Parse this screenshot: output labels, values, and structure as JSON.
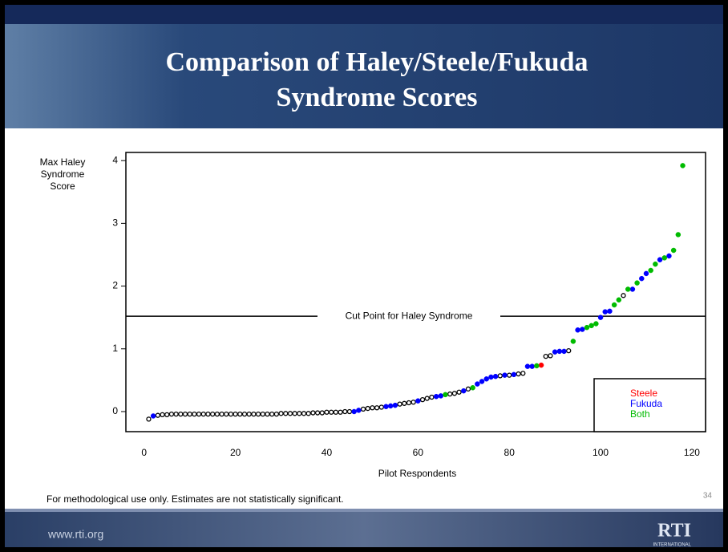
{
  "slide": {
    "title": [
      "Comparison of Haley/Steele/Fukuda",
      "Syndrome Scores"
    ],
    "footnote": "For methodological use only. Estimates are not statistically significant.",
    "page_number": "34",
    "url": "www.rti.org",
    "logo": "RTI",
    "logo_sub": "INTERNATIONAL"
  },
  "chart_data": {
    "type": "scatter",
    "xlabel": "Pilot Respondents",
    "ylabel": [
      "Max Haley",
      "Syndrome",
      "Score"
    ],
    "xlim": [
      -4,
      123
    ],
    "ylim": [
      -0.32,
      4.13
    ],
    "xticks": [
      0,
      20,
      40,
      60,
      80,
      100,
      120
    ],
    "yticks": [
      0,
      1,
      2,
      3,
      4
    ],
    "cut_point": 1.52,
    "cut_label": "Cut Point for Haley Syndrome",
    "legend": "lower right",
    "series": [
      {
        "color": "#000000",
        "hollow": true,
        "x": [
          1,
          3,
          4,
          5,
          6,
          7,
          8,
          9,
          10,
          11,
          12,
          13,
          14,
          15,
          16,
          17,
          18,
          19,
          20,
          21,
          22,
          23,
          24,
          25,
          26,
          27,
          28,
          29,
          30,
          31,
          32,
          33,
          34,
          35,
          36,
          37,
          38,
          39,
          40,
          41,
          42,
          43,
          44,
          45,
          48,
          49,
          50,
          51,
          52,
          56,
          57,
          58,
          59,
          61,
          62,
          63,
          67,
          68,
          69,
          71,
          78,
          80,
          82,
          83,
          88,
          89,
          93,
          105
        ],
        "y": [
          -0.12,
          -0.06,
          -0.05,
          -0.05,
          -0.04,
          -0.04,
          -0.04,
          -0.04,
          -0.04,
          -0.04,
          -0.04,
          -0.04,
          -0.04,
          -0.04,
          -0.04,
          -0.04,
          -0.04,
          -0.04,
          -0.04,
          -0.04,
          -0.04,
          -0.04,
          -0.04,
          -0.04,
          -0.04,
          -0.04,
          -0.04,
          -0.04,
          -0.03,
          -0.03,
          -0.03,
          -0.03,
          -0.03,
          -0.03,
          -0.03,
          -0.02,
          -0.02,
          -0.02,
          -0.01,
          -0.01,
          -0.01,
          -0.01,
          0.0,
          0.0,
          0.04,
          0.05,
          0.06,
          0.06,
          0.07,
          0.12,
          0.13,
          0.14,
          0.15,
          0.19,
          0.21,
          0.23,
          0.28,
          0.29,
          0.31,
          0.36,
          0.57,
          0.58,
          0.6,
          0.61,
          0.88,
          0.89,
          0.97,
          1.85
        ]
      },
      {
        "name": "Steele",
        "color": "#ff0000",
        "x": [
          87
        ],
        "y": [
          0.74
        ]
      },
      {
        "name": "Fukuda",
        "color": "#0000ff",
        "x": [
          2,
          46,
          47,
          53,
          54,
          55,
          60,
          64,
          65,
          70,
          73,
          74,
          75,
          76,
          77,
          79,
          81,
          84,
          85,
          90,
          91,
          92,
          95,
          96,
          100,
          101,
          102,
          107,
          109,
          110,
          113,
          115
        ],
        "y": [
          -0.07,
          0.0,
          0.02,
          0.08,
          0.09,
          0.1,
          0.17,
          0.24,
          0.25,
          0.33,
          0.44,
          0.48,
          0.52,
          0.55,
          0.56,
          0.58,
          0.59,
          0.72,
          0.72,
          0.95,
          0.96,
          0.96,
          1.3,
          1.31,
          1.5,
          1.59,
          1.6,
          1.95,
          2.12,
          2.2,
          2.42,
          2.48
        ]
      },
      {
        "name": "Both",
        "color": "#00bb00",
        "x": [
          66,
          72,
          86,
          94,
          97,
          98,
          99,
          103,
          104,
          106,
          108,
          111,
          112,
          114,
          116,
          117,
          118
        ],
        "y": [
          0.27,
          0.38,
          0.73,
          1.12,
          1.34,
          1.37,
          1.4,
          1.7,
          1.78,
          1.95,
          2.05,
          2.25,
          2.35,
          2.45,
          2.57,
          2.82,
          3.92
        ]
      }
    ]
  }
}
